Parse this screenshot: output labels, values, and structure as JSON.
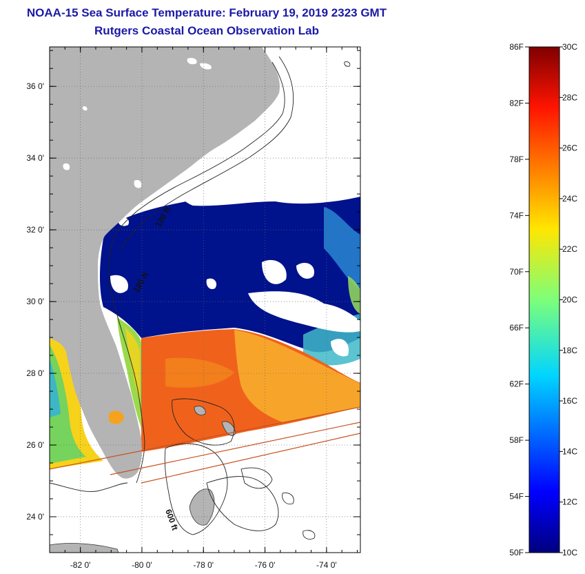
{
  "header": {
    "title": "NOAA-15 Sea Surface Temperature:  February 19, 2019 2323 GMT",
    "subtitle": "Rutgers Coastal Ocean Observation Lab"
  },
  "map": {
    "lon_range": [
      -83,
      -72.9
    ],
    "lat_range": [
      23,
      37.1
    ],
    "lon_ticks": [
      {
        "value": -82,
        "label": "-82 0'"
      },
      {
        "value": -80,
        "label": "-80 0'"
      },
      {
        "value": -78,
        "label": "-78 0'"
      },
      {
        "value": -76,
        "label": "-76 0'"
      },
      {
        "value": -74,
        "label": "-74 0'"
      }
    ],
    "lat_ticks": [
      {
        "value": 36,
        "label": "36 0'"
      },
      {
        "value": 34,
        "label": "34 0'"
      },
      {
        "value": 32,
        "label": "32 0'"
      },
      {
        "value": 30,
        "label": "30 0'"
      },
      {
        "value": 28,
        "label": "28 0'"
      },
      {
        "value": 26,
        "label": "26 0'"
      },
      {
        "value": 24,
        "label": "24 0'"
      }
    ],
    "contour_labels": [
      "120 ft",
      "120 ft",
      "600 ft"
    ],
    "colors": {
      "land": "#b4b4b4",
      "cloud": "#ffffff",
      "cold_water": "#00128c",
      "warm_water": "#f05a14",
      "gulf_water": "#f5a31e"
    }
  },
  "colorbar": {
    "fahrenheit_labels": [
      "86F",
      "82F",
      "78F",
      "74F",
      "70F",
      "66F",
      "62F",
      "58F",
      "54F",
      "50F"
    ],
    "celsius_labels": [
      "30C",
      "28C",
      "26C",
      "24C",
      "22C",
      "20C",
      "18C",
      "16C",
      "14C",
      "12C",
      "10C"
    ],
    "range_c": [
      10,
      30
    ],
    "range_f": [
      50,
      86
    ]
  }
}
